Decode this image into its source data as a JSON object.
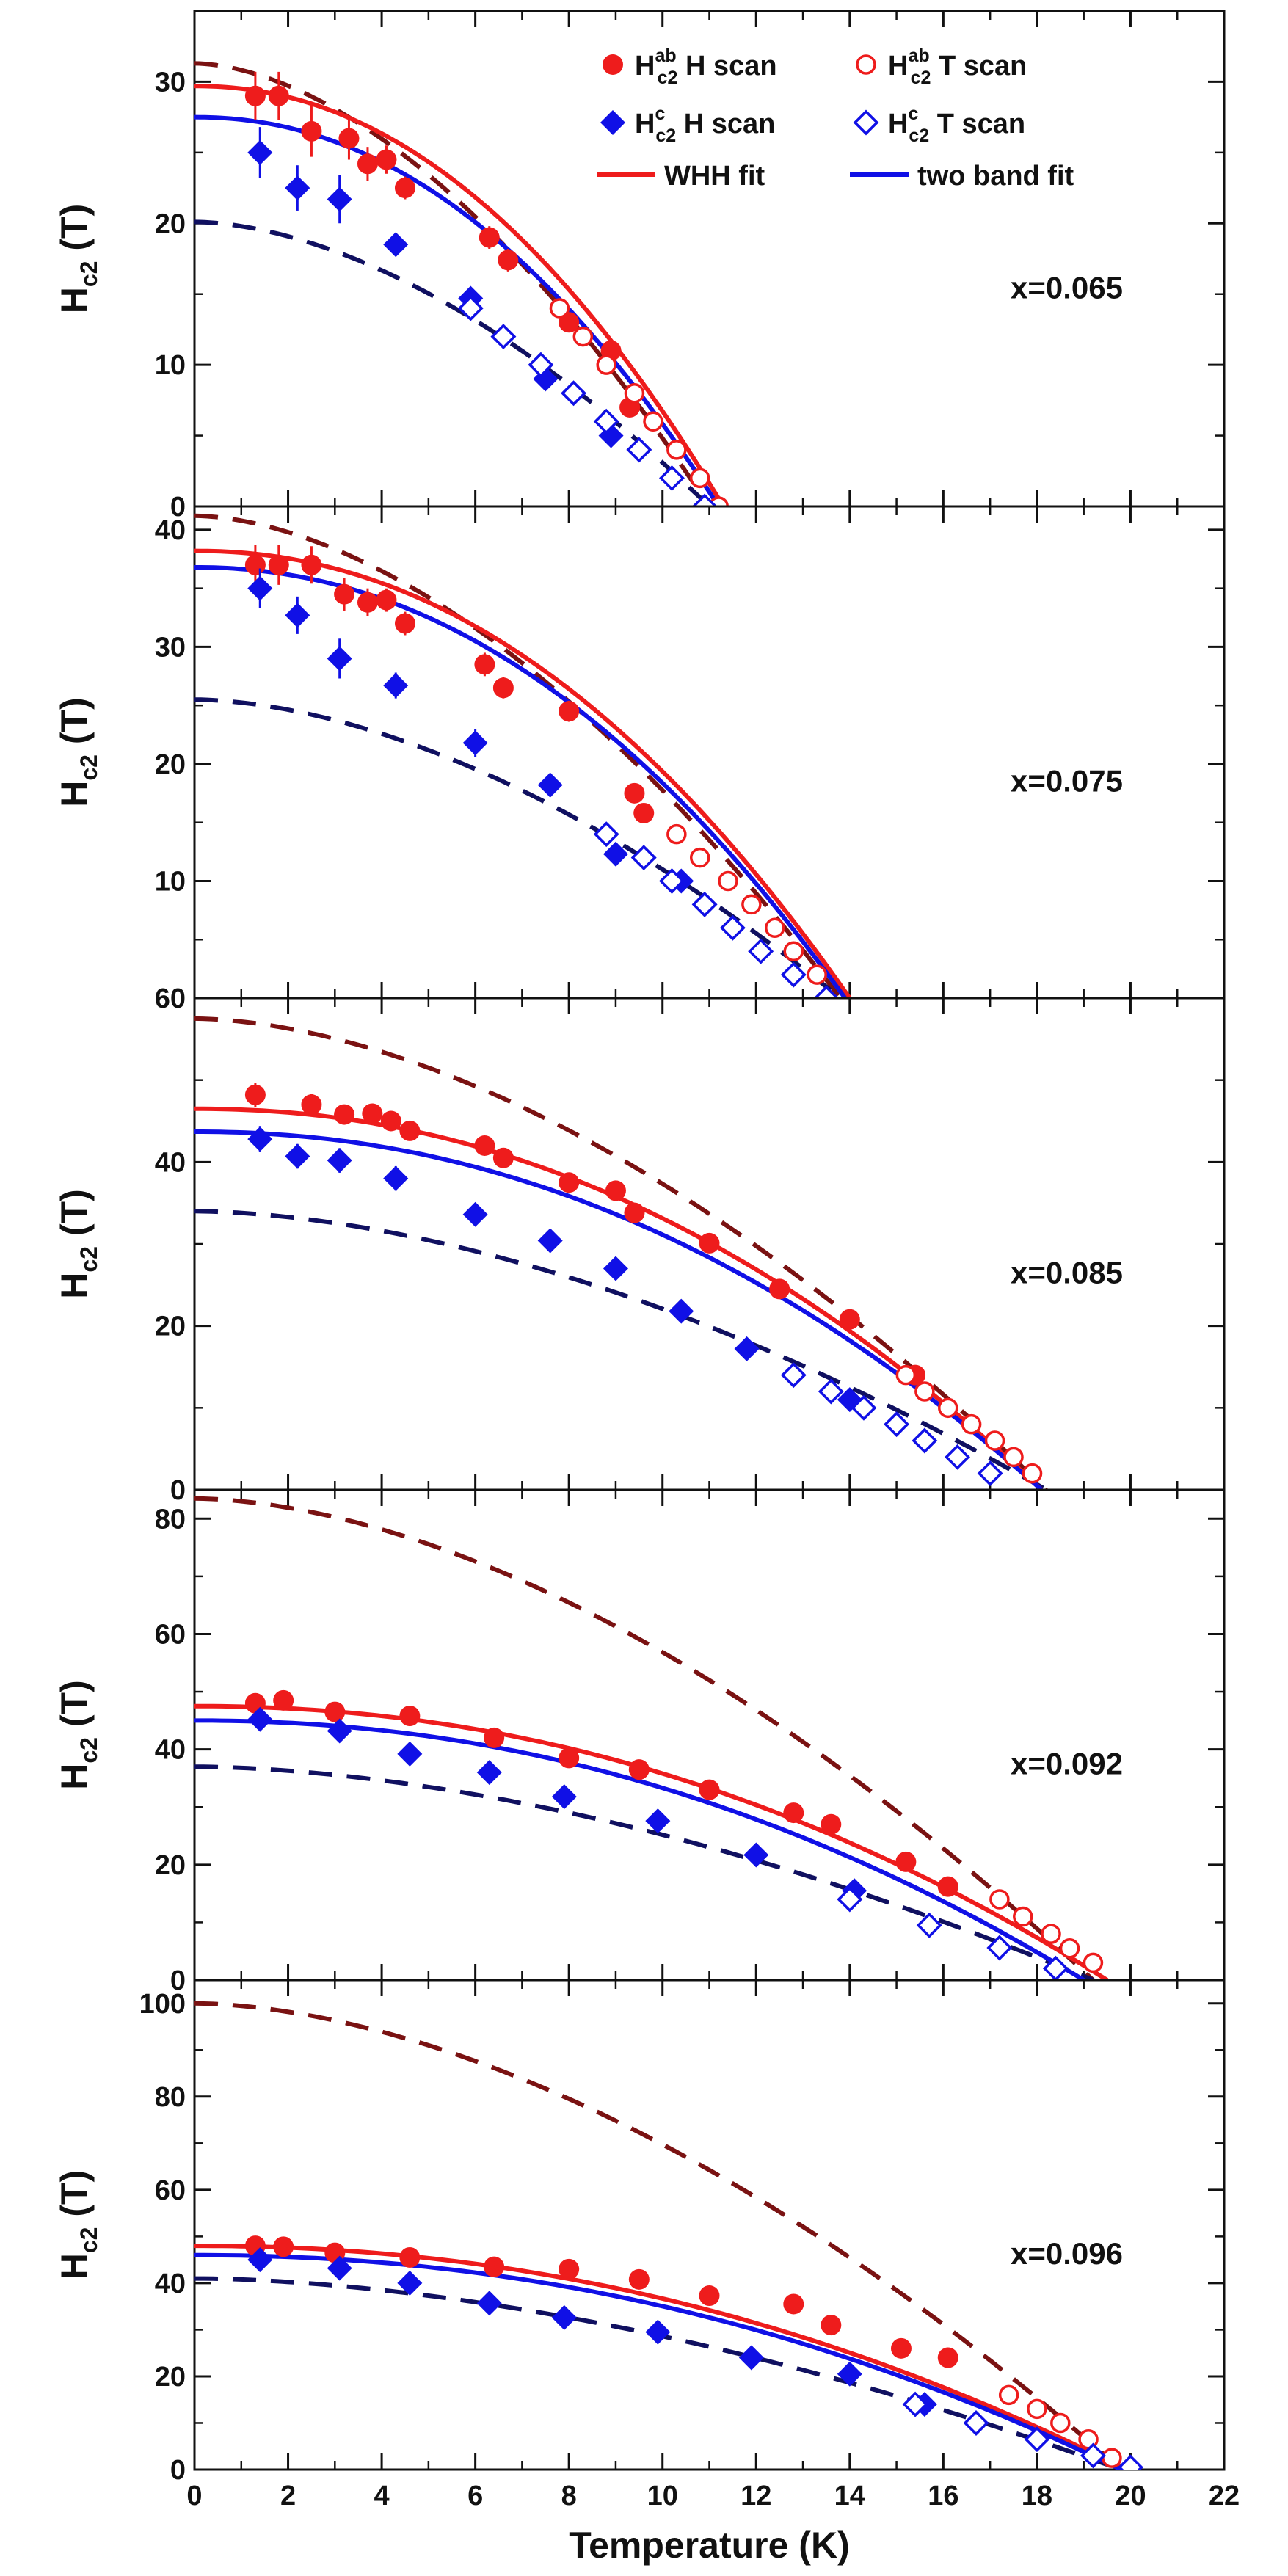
{
  "chart_data": {
    "type": "scatter",
    "x_axis": {
      "label": "Temperature (K)",
      "range": [
        0,
        22
      ],
      "ticks": [
        0,
        2,
        4,
        6,
        8,
        10,
        12,
        14,
        16,
        18,
        20,
        22
      ]
    },
    "legend": {
      "position": "top-right of first panel",
      "entries": [
        {
          "key": "ab_h",
          "symbol": "filled-circle",
          "color": "#ee1c1c",
          "main": "H",
          "sup": "ab",
          "sub": "c2",
          "suffix": " H scan"
        },
        {
          "key": "ab_t",
          "symbol": "open-circle",
          "color": "#ee1c1c",
          "main": "H",
          "sup": "ab",
          "sub": "c2",
          "suffix": "  T scan"
        },
        {
          "key": "c_h",
          "symbol": "filled-diamond",
          "color": "#1010e6",
          "main": "H",
          "sup": "c",
          "sub": "c2",
          "suffix": " H scan"
        },
        {
          "key": "c_t",
          "symbol": "open-diamond",
          "color": "#1010e6",
          "main": "H",
          "sup": "c",
          "sub": "c2",
          "suffix": "  T scan"
        },
        {
          "key": "whh",
          "symbol": "line",
          "color": "#ee1c1c",
          "main": "WHH fit",
          "sup": "",
          "sub": "",
          "suffix": ""
        },
        {
          "key": "twoband",
          "symbol": "line",
          "color": "#1010e6",
          "main": "two band fit",
          "sup": "",
          "sub": "",
          "suffix": ""
        }
      ]
    },
    "colors": {
      "ab": "#ee1c1c",
      "c": "#1010e6",
      "dashed_ab": "#7a1212",
      "dashed_c": "#101060"
    },
    "panels": [
      {
        "label": "x=0.065",
        "ylabel_main": "H",
        "ylabel_sub": "c2",
        "ylabel_unit": " (T)",
        "ylim": [
          0,
          35
        ],
        "yticks": [
          0,
          10,
          20,
          30
        ],
        "ab_h_scan": [
          [
            1.3,
            29,
            1.7
          ],
          [
            1.8,
            29,
            1.7
          ],
          [
            2.5,
            26.5,
            1.8
          ],
          [
            3.3,
            26,
            1.5
          ],
          [
            3.7,
            24.2,
            1.2
          ],
          [
            4.1,
            24.5,
            1.0
          ],
          [
            4.5,
            22.5,
            0.8
          ],
          [
            6.3,
            19,
            0.8
          ],
          [
            6.7,
            17.4,
            0.8
          ],
          [
            8,
            13,
            0.7
          ],
          [
            8.9,
            11,
            0.6
          ],
          [
            9.3,
            7,
            0.6
          ]
        ],
        "ab_t_scan": [
          [
            7.8,
            14
          ],
          [
            8.3,
            12
          ],
          [
            8.8,
            10
          ],
          [
            9.4,
            8
          ],
          [
            9.8,
            6
          ],
          [
            10.3,
            4
          ],
          [
            10.8,
            2
          ],
          [
            11.2,
            0
          ]
        ],
        "c_h_scan": [
          [
            1.4,
            25,
            1.8
          ],
          [
            2.2,
            22.5,
            1.6
          ],
          [
            3.1,
            21.7,
            1.7
          ],
          [
            4.3,
            18.5,
            0.7
          ],
          [
            5.9,
            14.7,
            0.6
          ],
          [
            7.5,
            9,
            0.5
          ],
          [
            8.9,
            5,
            0.5
          ]
        ],
        "c_t_scan": [
          [
            5.9,
            14
          ],
          [
            6.6,
            12
          ],
          [
            7.4,
            10
          ],
          [
            8.1,
            8
          ],
          [
            8.8,
            6
          ],
          [
            9.5,
            4
          ],
          [
            10.2,
            2
          ],
          [
            10.9,
            0
          ]
        ],
        "whh_fit": {
          "h0": 29.7,
          "tc": 11.3
        },
        "two_band_fit": {
          "h0": 27.5,
          "tc": 11.2
        },
        "dashed_ab": {
          "h0": 31.3,
          "tc": 11.0
        },
        "dashed_c": {
          "h0": 20.1,
          "tc": 11.0
        }
      },
      {
        "label": "x=0.075",
        "ylabel_main": "H",
        "ylabel_sub": "c2",
        "ylabel_unit": " (T)",
        "ylim": [
          0,
          42
        ],
        "yticks": [
          10,
          20,
          30,
          40
        ],
        "ab_h_scan": [
          [
            1.3,
            37,
            1.7
          ],
          [
            1.8,
            37,
            1.7
          ],
          [
            2.5,
            37,
            1.6
          ],
          [
            3.2,
            34.5,
            1.4
          ],
          [
            3.7,
            33.8,
            1.2
          ],
          [
            4.1,
            34,
            1.0
          ],
          [
            4.5,
            32,
            1.0
          ],
          [
            6.2,
            28.5,
            1.0
          ],
          [
            6.6,
            26.5,
            0.9
          ],
          [
            8.0,
            24.5,
            0.9
          ],
          [
            9.4,
            17.5,
            0.8
          ],
          [
            9.6,
            15.8,
            0.8
          ]
        ],
        "ab_t_scan": [
          [
            10.3,
            14
          ],
          [
            10.8,
            12
          ],
          [
            11.4,
            10
          ],
          [
            11.9,
            8
          ],
          [
            12.4,
            6
          ],
          [
            12.8,
            4
          ],
          [
            13.3,
            2
          ]
        ],
        "c_h_scan": [
          [
            1.4,
            35,
            1.7
          ],
          [
            2.2,
            32.7,
            1.6
          ],
          [
            3.1,
            29,
            1.7
          ],
          [
            4.3,
            26.7,
            1.1
          ],
          [
            6.0,
            21.8,
            1.2
          ],
          [
            7.6,
            18.2,
            1.0
          ],
          [
            9.0,
            12.3,
            1.0
          ],
          [
            10.4,
            10,
            0.8
          ]
        ],
        "c_t_scan": [
          [
            8.8,
            14
          ],
          [
            9.6,
            12
          ],
          [
            10.2,
            10
          ],
          [
            10.9,
            8
          ],
          [
            11.5,
            6
          ],
          [
            12.1,
            4
          ],
          [
            12.8,
            2
          ],
          [
            13.5,
            0
          ]
        ],
        "whh_fit": {
          "h0": 38.2,
          "tc": 14.0
        },
        "two_band_fit": {
          "h0": 36.8,
          "tc": 13.9
        },
        "dashed_ab": {
          "h0": 41.2,
          "tc": 13.8
        },
        "dashed_c": {
          "h0": 25.5,
          "tc": 13.8
        }
      },
      {
        "label": "x=0.085",
        "ylabel_main": "H",
        "ylabel_sub": "c2",
        "ylabel_unit": " (T)",
        "ylim": [
          0,
          60
        ],
        "yticks": [
          0,
          20,
          40,
          60
        ],
        "ab_h_scan": [
          [
            1.3,
            48.2,
            1.5
          ],
          [
            2.5,
            47,
            1.3
          ],
          [
            3.2,
            45.8,
            1.1
          ],
          [
            3.8,
            45.9,
            1.0
          ],
          [
            4.2,
            45,
            1.0
          ],
          [
            4.6,
            43.8,
            0.9
          ],
          [
            6.2,
            42,
            0.8
          ],
          [
            6.6,
            40.5,
            0.8
          ],
          [
            8.0,
            37.5,
            0.8
          ],
          [
            9.0,
            36.5,
            0.8
          ],
          [
            9.4,
            33.8,
            0.8
          ],
          [
            11.0,
            30.1,
            0.8
          ],
          [
            12.5,
            24.5,
            0.8
          ],
          [
            14.0,
            20.8,
            0.8
          ],
          [
            15.4,
            14,
            0.8
          ]
        ],
        "ab_t_scan": [
          [
            15.2,
            14
          ],
          [
            15.6,
            12
          ],
          [
            16.1,
            10
          ],
          [
            16.6,
            8
          ],
          [
            17.1,
            6
          ],
          [
            17.5,
            4
          ],
          [
            17.9,
            2
          ]
        ],
        "c_h_scan": [
          [
            1.4,
            42.8,
            1.6
          ],
          [
            2.2,
            40.7,
            1.5
          ],
          [
            3.1,
            40.2,
            1.5
          ],
          [
            4.3,
            38.0,
            1.5
          ],
          [
            6.0,
            33.6,
            1.4
          ],
          [
            7.6,
            30.4,
            1.4
          ],
          [
            9.0,
            27.0,
            1.3
          ],
          [
            10.4,
            21.8,
            1.2
          ],
          [
            11.8,
            17.2,
            1.0
          ],
          [
            14.0,
            11.0,
            0.8
          ]
        ],
        "c_t_scan": [
          [
            12.8,
            14
          ],
          [
            13.6,
            12
          ],
          [
            14.3,
            10
          ],
          [
            15.0,
            8
          ],
          [
            15.6,
            6
          ],
          [
            16.3,
            4
          ],
          [
            17.0,
            2
          ]
        ],
        "whh_fit": {
          "h0": 46.5,
          "tc": 18.1
        },
        "two_band_fit": {
          "h0": 43.7,
          "tc": 18.1
        },
        "dashed_ab": {
          "h0": 57.5,
          "tc": 18.2
        },
        "dashed_c": {
          "h0": 34.0,
          "tc": 18.2
        }
      },
      {
        "label": "x=0.092",
        "ylabel_main": "H",
        "ylabel_sub": "c2",
        "ylabel_unit": " (T)",
        "ylim": [
          0,
          85
        ],
        "yticks": [
          0,
          20,
          40,
          60,
          80
        ],
        "ab_h_scan": [
          [
            1.3,
            48,
            0
          ],
          [
            1.9,
            48.5,
            0
          ],
          [
            3.0,
            46.5,
            0
          ],
          [
            4.6,
            45.8,
            0
          ],
          [
            6.4,
            42,
            0
          ],
          [
            8.0,
            38.5,
            0
          ],
          [
            9.5,
            36.5,
            0
          ],
          [
            11.0,
            33,
            0
          ],
          [
            12.8,
            29,
            0
          ],
          [
            13.6,
            27,
            0
          ],
          [
            15.2,
            20.5,
            0
          ],
          [
            16.1,
            16.2,
            0
          ]
        ],
        "ab_t_scan": [
          [
            17.2,
            14
          ],
          [
            17.7,
            11
          ],
          [
            18.3,
            8
          ],
          [
            18.7,
            5.5
          ],
          [
            19.2,
            3.0
          ]
        ],
        "c_h_scan": [
          [
            1.4,
            45.2,
            0
          ],
          [
            3.1,
            43.2,
            0
          ],
          [
            4.6,
            39.2,
            0
          ],
          [
            6.3,
            36,
            0
          ],
          [
            7.9,
            31.8,
            0
          ],
          [
            9.9,
            27.6,
            0
          ],
          [
            12.0,
            21.7,
            0
          ],
          [
            14.1,
            15.5,
            0
          ]
        ],
        "c_t_scan": [
          [
            14.0,
            14
          ],
          [
            15.7,
            9.5
          ],
          [
            17.2,
            5.6
          ],
          [
            18.4,
            2.0
          ]
        ],
        "whh_fit": {
          "h0": 47.5,
          "tc": 19.5
        },
        "two_band_fit": {
          "h0": 45.0,
          "tc": 19.0
        },
        "dashed_ab": {
          "h0": 83.5,
          "tc": 19.2
        },
        "dashed_c": {
          "h0": 37.0,
          "tc": 19.2
        }
      },
      {
        "label": "x=0.096",
        "ylabel_main": "H",
        "ylabel_sub": "c2",
        "ylabel_unit": " (T)",
        "ylim": [
          0,
          105
        ],
        "yticks": [
          0,
          20,
          40,
          60,
          80,
          100
        ],
        "ab_h_scan": [
          [
            1.3,
            48,
            0
          ],
          [
            1.9,
            47.8,
            0
          ],
          [
            3.0,
            46.5,
            0
          ],
          [
            4.6,
            45.5,
            0
          ],
          [
            6.4,
            43.5,
            0
          ],
          [
            8.0,
            43,
            0
          ],
          [
            9.5,
            40.8,
            0
          ],
          [
            11.0,
            37.3,
            0
          ],
          [
            12.8,
            35.5,
            0
          ],
          [
            13.6,
            31,
            0
          ],
          [
            15.1,
            26,
            0
          ],
          [
            16.1,
            24,
            0
          ]
        ],
        "ab_t_scan": [
          [
            17.4,
            16
          ],
          [
            18.0,
            13
          ],
          [
            18.5,
            10
          ],
          [
            19.1,
            6.5
          ],
          [
            19.6,
            2.5
          ]
        ],
        "c_h_scan": [
          [
            1.4,
            45,
            0
          ],
          [
            3.1,
            43.2,
            0
          ],
          [
            4.6,
            40,
            0
          ],
          [
            6.3,
            35.7,
            0
          ],
          [
            7.9,
            32.6,
            0
          ],
          [
            9.9,
            29.5,
            0
          ],
          [
            11.9,
            24,
            0
          ],
          [
            14.0,
            20.5,
            0
          ],
          [
            15.6,
            14,
            0
          ]
        ],
        "c_t_scan": [
          [
            15.4,
            14
          ],
          [
            16.7,
            10
          ],
          [
            18.0,
            6.5
          ],
          [
            19.2,
            3
          ],
          [
            20.0,
            0.5
          ]
        ],
        "whh_fit": {
          "h0": 48.0,
          "tc": 19.9
        },
        "two_band_fit": {
          "h0": 46.0,
          "tc": 19.8
        },
        "dashed_ab": {
          "h0": 100.0,
          "tc": 19.8
        },
        "dashed_c": {
          "h0": 41.0,
          "tc": 19.8
        }
      }
    ]
  }
}
